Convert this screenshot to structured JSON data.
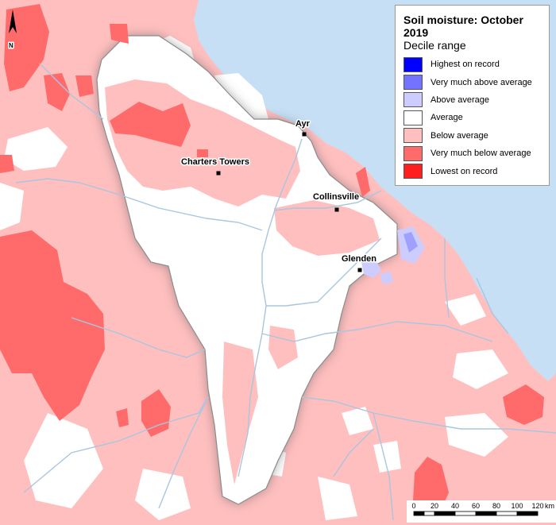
{
  "legend": {
    "title": "Soil moisture: October 2019",
    "subtitle": "Decile range",
    "items": [
      {
        "label": "Highest on record",
        "color": "#0000ff"
      },
      {
        "label": "Very much above average",
        "color": "#7373ff"
      },
      {
        "label": "Above average",
        "color": "#ccccff"
      },
      {
        "label": "Average",
        "color": "#ffffff"
      },
      {
        "label": "Below average",
        "color": "#ffbfbf"
      },
      {
        "label": "Very much below average",
        "color": "#ff6b6b"
      },
      {
        "label": "Lowest on record",
        "color": "#ff1e1e"
      }
    ]
  },
  "towns": [
    {
      "name": "Ayr"
    },
    {
      "name": "Charters Towers"
    },
    {
      "name": "Collinsville"
    },
    {
      "name": "Glenden"
    }
  ],
  "north_arrow": {
    "label": "N"
  },
  "scale_bar": {
    "ticks": [
      "0",
      "20",
      "40",
      "60",
      "80",
      "100",
      "120"
    ],
    "unit": "km"
  },
  "colors": {
    "sea": "#c6dff5",
    "river": "#a9c5e0",
    "basin_outline": "#8c8c8c"
  }
}
